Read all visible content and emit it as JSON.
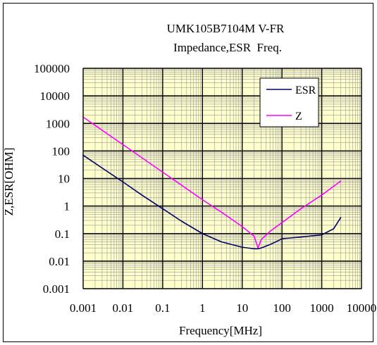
{
  "chart_data": {
    "type": "line",
    "title": "UMK105B7104M V-FR",
    "subtitle": "Impedance,ESR  Freq.",
    "xlabel": "Frequency[MHz]",
    "ylabel": "Z,ESR[OHM]",
    "x_scale": "log",
    "y_scale": "log",
    "xlim": [
      0.001,
      10000
    ],
    "ylim": [
      0.001,
      100000
    ],
    "x_ticks": [
      0.001,
      0.01,
      0.1,
      1,
      10,
      100,
      1000,
      10000
    ],
    "x_tick_labels": [
      "0.001",
      "0.01",
      "0.1",
      "1",
      "10",
      "100",
      "1000",
      "10000"
    ],
    "y_ticks": [
      0.001,
      0.01,
      0.1,
      1,
      10,
      100,
      1000,
      10000,
      100000
    ],
    "y_tick_labels": [
      "0.001",
      "0.01",
      "0.1",
      "1",
      "10",
      "100",
      "1000",
      "10000",
      "100000"
    ],
    "grid": true,
    "plot_background": "#ffffcc",
    "legend": {
      "position": "top-right"
    },
    "series": [
      {
        "name": "ESR",
        "color": "#000066",
        "x": [
          0.001,
          0.003,
          0.01,
          0.03,
          0.1,
          0.3,
          1,
          3,
          10,
          20,
          25,
          30,
          50,
          70,
          100,
          300,
          1000,
          2000,
          3000
        ],
        "y": [
          70,
          24,
          7.5,
          2.5,
          0.8,
          0.28,
          0.1,
          0.05,
          0.032,
          0.028,
          0.028,
          0.03,
          0.04,
          0.05,
          0.065,
          0.075,
          0.09,
          0.15,
          0.38
        ]
      },
      {
        "name": "Z",
        "color": "#ff00ff",
        "x": [
          0.001,
          0.01,
          0.1,
          1,
          3,
          10,
          20,
          25,
          30,
          50,
          100,
          300,
          1000,
          3000
        ],
        "y": [
          1700,
          170,
          17,
          1.7,
          0.6,
          0.18,
          0.08,
          0.03,
          0.06,
          0.12,
          0.25,
          0.8,
          2.5,
          8
        ]
      }
    ]
  }
}
